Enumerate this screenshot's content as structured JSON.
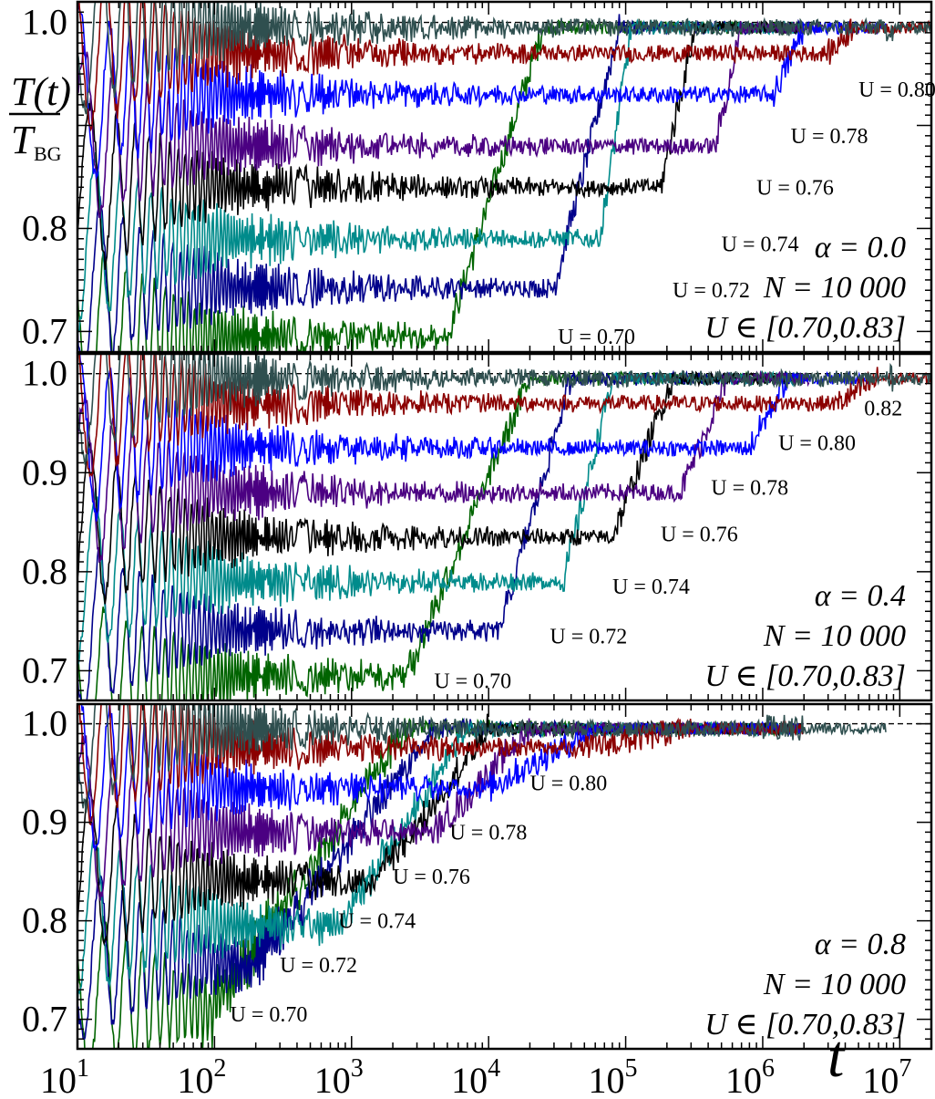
{
  "chart_data": [
    {
      "type": "line",
      "panel": "top",
      "ylabel_num": "T(t)",
      "ylabel_den": "T",
      "ylabel_den_sub": "BG",
      "xlabel": "t",
      "x_scale": "log",
      "xlim": [
        10,
        17000000
      ],
      "ylim": [
        0.68,
        1.02
      ],
      "yticks": [
        0.7,
        0.8,
        1.0
      ],
      "ytick_labels": [
        "0.7",
        "0.8",
        "1.0"
      ],
      "reference_line": 1.0,
      "annotations": [
        "α = 0.0",
        "N = 10 000",
        "U ∈ [0.70,0.83]"
      ],
      "series": [
        {
          "name": "U = 0.70",
          "label_pos": [
            32000,
            0.695
          ],
          "color": "#006400",
          "start": 0.7,
          "plateau": 0.695,
          "t1": 5000,
          "t2": 25000,
          "final": 0.995
        },
        {
          "name": "U = 0.72",
          "label_pos": [
            220000,
            0.74
          ],
          "color": "#00008b",
          "start": 0.75,
          "plateau": 0.742,
          "t1": 30000,
          "t2": 90000,
          "final": 0.995
        },
        {
          "name": "U = 0.74",
          "label_pos": [
            500000,
            0.785
          ],
          "color": "#008b8b",
          "start": 0.79,
          "plateau": 0.79,
          "t1": 65000,
          "t2": 110000,
          "final": 0.995
        },
        {
          "name": "U = 0.76",
          "label_pos": [
            900000,
            0.84
          ],
          "color": "#000000",
          "start": 0.84,
          "plateau": 0.84,
          "t1": 180000,
          "t2": 320000,
          "final": 0.995
        },
        {
          "name": "U = 0.78",
          "label_pos": [
            1600000,
            0.89
          ],
          "color": "#4b0082",
          "start": 0.89,
          "plateau": 0.88,
          "t1": 450000,
          "t2": 700000,
          "final": 0.995
        },
        {
          "name": "U = 0.80",
          "label_pos": [
            5000000,
            0.935
          ],
          "color": "#0000ff",
          "start": 0.93,
          "plateau": 0.93,
          "t1": 1200000,
          "t2": 2000000,
          "final": 0.995
        },
        {
          "name": "",
          "label_pos": null,
          "color": "#8b0000",
          "start": 0.98,
          "plateau": 0.97,
          "t1": 3000000,
          "t2": 4500000,
          "final": 0.995
        },
        {
          "name": "",
          "label_pos": null,
          "color": "#2f4f4f",
          "start": 1.0,
          "plateau": 0.995,
          "t1": 8000000,
          "t2": 9000000,
          "final": 0.995
        }
      ]
    },
    {
      "type": "line",
      "panel": "middle",
      "xlabel": "t",
      "x_scale": "log",
      "xlim": [
        10,
        17000000
      ],
      "ylim": [
        0.67,
        1.02
      ],
      "yticks": [
        0.7,
        0.8,
        0.9,
        1.0
      ],
      "ytick_labels": [
        "0.7",
        "0.8",
        "0.9",
        "1.0"
      ],
      "reference_line": 1.0,
      "annotations": [
        "α = 0.4",
        "N = 10 000",
        "U ∈ [0.70,0.83]"
      ],
      "series": [
        {
          "name": "U = 0.70",
          "label_pos": [
            4000,
            0.69
          ],
          "color": "#006400",
          "start": 0.69,
          "plateau": 0.695,
          "t1": 2500,
          "t2": 20000,
          "final": 0.995
        },
        {
          "name": "U = 0.72",
          "label_pos": [
            28000,
            0.735
          ],
          "color": "#00008b",
          "start": 0.745,
          "plateau": 0.74,
          "t1": 12000,
          "t2": 40000,
          "final": 0.995
        },
        {
          "name": "U = 0.74",
          "label_pos": [
            80000,
            0.785
          ],
          "color": "#008b8b",
          "start": 0.8,
          "plateau": 0.79,
          "t1": 35000,
          "t2": 80000,
          "final": 0.995
        },
        {
          "name": "U = 0.76",
          "label_pos": [
            180000,
            0.838
          ],
          "color": "#000000",
          "start": 0.845,
          "plateau": 0.835,
          "t1": 80000,
          "t2": 220000,
          "final": 0.995
        },
        {
          "name": "U = 0.78",
          "label_pos": [
            420000,
            0.885
          ],
          "color": "#4b0082",
          "start": 0.89,
          "plateau": 0.88,
          "t1": 250000,
          "t2": 550000,
          "final": 0.995
        },
        {
          "name": "U = 0.80",
          "label_pos": [
            1300000,
            0.93
          ],
          "color": "#0000ff",
          "start": 0.935,
          "plateau": 0.925,
          "t1": 800000,
          "t2": 1500000,
          "final": 0.995
        },
        {
          "name": "0.82",
          "label_pos": [
            5500000,
            0.965
          ],
          "color": "#8b0000",
          "start": 0.98,
          "plateau": 0.97,
          "t1": 3500000,
          "t2": 7000000,
          "final": 0.995
        },
        {
          "name": "",
          "label_pos": null,
          "color": "#2f4f4f",
          "start": 1.0,
          "plateau": 0.995,
          "t1": 8000000,
          "t2": 9000000,
          "final": 0.995
        }
      ]
    },
    {
      "type": "line",
      "panel": "bottom",
      "xlabel": "t",
      "x_scale": "log",
      "xlim": [
        10,
        17000000
      ],
      "xticks": [
        10,
        100,
        1000,
        10000,
        100000,
        1000000,
        10000000
      ],
      "xtick_base": "10",
      "xtick_exps": [
        "1",
        "2",
        "3",
        "4",
        "5",
        "6",
        "7"
      ],
      "ylim": [
        0.67,
        1.02
      ],
      "yticks": [
        0.7,
        0.8,
        0.9,
        1.0
      ],
      "ytick_labels": [
        "0.7",
        "0.8",
        "0.9",
        "1.0"
      ],
      "reference_line": 1.0,
      "annotations": [
        "α = 0.8",
        "N = 10 000",
        "U ∈ [0.70,0.83]"
      ],
      "series": [
        {
          "name": "U = 0.70",
          "label_pos": [
            130,
            0.705
          ],
          "color": "#006400",
          "start": 0.73,
          "plateau": 0.705,
          "t1": 90,
          "t2": 2500,
          "final": 0.995
        },
        {
          "name": "U = 0.72",
          "label_pos": [
            300,
            0.755
          ],
          "color": "#00008b",
          "start": 0.77,
          "plateau": 0.755,
          "t1": 200,
          "t2": 4000,
          "final": 0.995
        },
        {
          "name": "U = 0.74",
          "label_pos": [
            800,
            0.8
          ],
          "color": "#008b8b",
          "start": 0.81,
          "plateau": 0.795,
          "t1": 800,
          "t2": 7000,
          "final": 0.995
        },
        {
          "name": "U = 0.76",
          "label_pos": [
            2000,
            0.845
          ],
          "color": "#000000",
          "start": 0.85,
          "plateau": 0.84,
          "t1": 1500,
          "t2": 10000,
          "final": 0.995
        },
        {
          "name": "U = 0.78",
          "label_pos": [
            5200,
            0.89
          ],
          "color": "#4b0082",
          "start": 0.9,
          "plateau": 0.89,
          "t1": 4000,
          "t2": 20000,
          "final": 0.995
        },
        {
          "name": "U = 0.80",
          "label_pos": [
            20000,
            0.94
          ],
          "color": "#0000ff",
          "start": 0.95,
          "plateau": 0.935,
          "t1": 10000,
          "t2": 60000,
          "final": 0.995
        },
        {
          "name": "",
          "label_pos": null,
          "color": "#8b0000",
          "start": 0.985,
          "plateau": 0.975,
          "t1": 50000,
          "t2": 300000,
          "final": 0.995
        },
        {
          "name": "",
          "label_pos": null,
          "color": "#2f4f4f",
          "start": 1.0,
          "plateau": 0.995,
          "t1": 1000000,
          "t2": 2000000,
          "final": 0.995
        }
      ]
    }
  ]
}
